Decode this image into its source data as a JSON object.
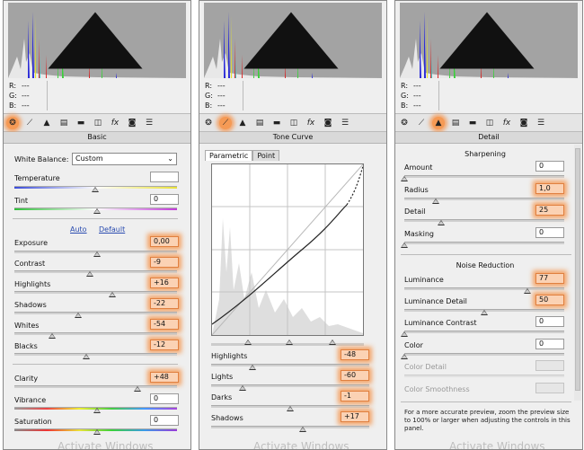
{
  "rgb": {
    "r_label": "R:",
    "g_label": "G:",
    "b_label": "B:",
    "r_value": "---",
    "g_value": "---",
    "b_value": "---"
  },
  "panels": {
    "basic": {
      "header": "Basic",
      "white_balance": {
        "label": "White Balance:",
        "value": "Custom"
      },
      "temperature": {
        "label": "Temperature",
        "value": "",
        "level": 0.47
      },
      "tint": {
        "label": "Tint",
        "value": "0",
        "level": 0.5
      },
      "auto_link": "Auto",
      "default_link": "Default",
      "sliders": [
        {
          "label": "Exposure",
          "value": "0,00",
          "level": 0.5
        },
        {
          "label": "Contrast",
          "value": "-9",
          "level": 0.46
        },
        {
          "label": "Highlights",
          "value": "+16",
          "level": 0.58
        },
        {
          "label": "Shadows",
          "value": "-22",
          "level": 0.39
        },
        {
          "label": "Whites",
          "value": "-54",
          "level": 0.23
        },
        {
          "label": "Blacks",
          "value": "-12",
          "level": 0.44
        }
      ],
      "clarity": {
        "label": "Clarity",
        "value": "+48",
        "level": 0.74
      },
      "vibrance": {
        "label": "Vibrance",
        "value": "0",
        "level": 0.5
      },
      "saturation": {
        "label": "Saturation",
        "value": "0",
        "level": 0.5
      }
    },
    "tone_curve": {
      "header": "Tone Curve",
      "tabs": [
        "Parametric",
        "Point"
      ],
      "sliders": [
        {
          "label": "Highlights",
          "value": "-48",
          "level": 0.26
        },
        {
          "label": "Lights",
          "value": "-60",
          "level": 0.2
        },
        {
          "label": "Darks",
          "value": "-1",
          "level": 0.5
        },
        {
          "label": "Shadows",
          "value": "+17",
          "level": 0.58
        }
      ]
    },
    "detail": {
      "header": "Detail",
      "sharpening_title": "Sharpening",
      "sharpening": [
        {
          "label": "Amount",
          "value": "0",
          "level": 0.0
        },
        {
          "label": "Radius",
          "value": "1,0",
          "level": 0.22
        },
        {
          "label": "Detail",
          "value": "25",
          "level": 0.25
        },
        {
          "label": "Masking",
          "value": "0",
          "level": 0.0
        }
      ],
      "noise_title": "Noise Reduction",
      "noise": [
        {
          "label": "Luminance",
          "value": "77",
          "level": 0.77
        },
        {
          "label": "Luminance Detail",
          "value": "50",
          "level": 0.5
        },
        {
          "label": "Luminance Contrast",
          "value": "0",
          "level": 0.0
        },
        {
          "label": "Color",
          "value": "0",
          "level": 0.0
        },
        {
          "label": "Color Detail",
          "value": "",
          "level": 0.5
        },
        {
          "label": "Color Smoothness",
          "value": "",
          "level": 0.5
        }
      ],
      "note": "For a more accurate preview, zoom the preview size to 100% or larger when adjusting the controls in this panel."
    }
  },
  "watermark": "Activate Windows",
  "colors": {
    "highlight": "#f59a55",
    "histogram_bg": "#a3a3a3"
  }
}
